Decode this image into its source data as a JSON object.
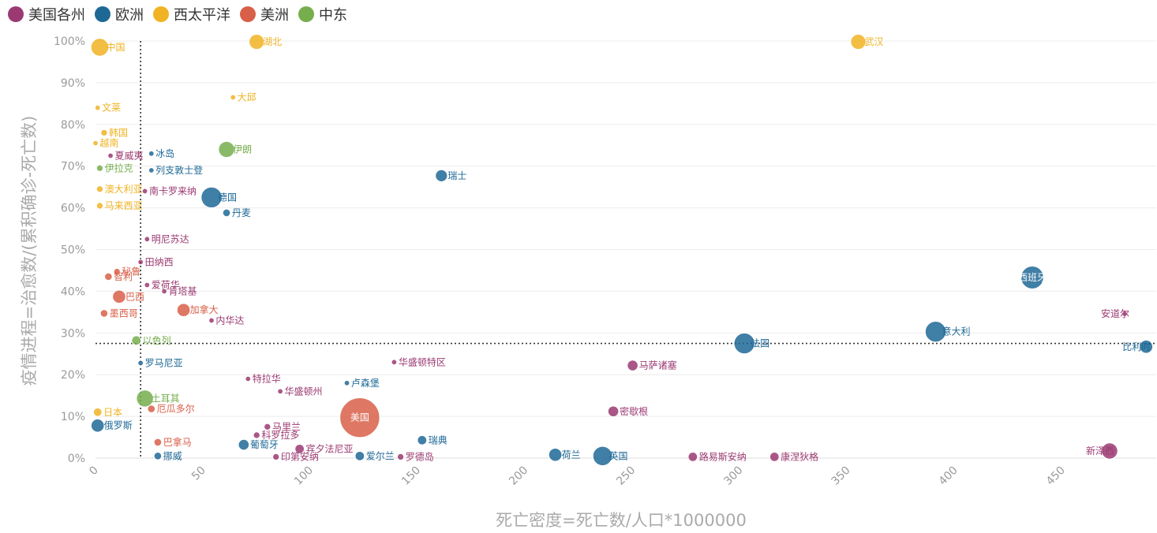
{
  "chart_data": {
    "type": "scatter",
    "xlabel": "死亡密度=死亡数/人口*1000000",
    "ylabel": "疫情进程=治愈数/(累积确诊-死亡数)",
    "xlim": [
      0,
      490
    ],
    "ylim": [
      0,
      1
    ],
    "x_ticks": [
      0,
      50,
      100,
      150,
      200,
      250,
      300,
      350,
      400,
      450
    ],
    "y_ticks": [
      0,
      0.1,
      0.2,
      0.3,
      0.4,
      0.5,
      0.6,
      0.7,
      0.8,
      0.9,
      1.0
    ],
    "y_tick_labels": [
      "0%",
      "10%",
      "20%",
      "30%",
      "40%",
      "50%",
      "60%",
      "70%",
      "80%",
      "90%",
      "100%"
    ],
    "grid": "horizontal",
    "legend_position": "top-left",
    "reference_lines": [
      {
        "axis": "x",
        "value": 21,
        "style": "dotted"
      },
      {
        "axis": "y",
        "value": 0.275,
        "style": "dotted"
      }
    ],
    "colors": {
      "美国各州": "#9b3a72",
      "欧洲": "#1e6896",
      "西太平洋": "#f0b323",
      "美洲": "#d85f48",
      "中东": "#76ae4d"
    },
    "series": [
      {
        "name": "美国各州",
        "points": [
          {
            "label": "夏威夷",
            "x": 7,
            "y": 0.725,
            "size": 1
          },
          {
            "label": "南卡罗来纳",
            "x": 23,
            "y": 0.64,
            "size": 1
          },
          {
            "label": "明尼苏达",
            "x": 24,
            "y": 0.525,
            "size": 1
          },
          {
            "label": "田纳西",
            "x": 21,
            "y": 0.47,
            "size": 1
          },
          {
            "label": "爱荷华",
            "x": 24,
            "y": 0.415,
            "size": 1
          },
          {
            "label": "肯塔基",
            "x": 32,
            "y": 0.4,
            "size": 1
          },
          {
            "label": "内华达",
            "x": 54,
            "y": 0.33,
            "size": 1
          },
          {
            "label": "华盛顿特区",
            "x": 139,
            "y": 0.23,
            "size": 1
          },
          {
            "label": "特拉华",
            "x": 71,
            "y": 0.19,
            "size": 1
          },
          {
            "label": "华盛顿州",
            "x": 86,
            "y": 0.16,
            "size": 1
          },
          {
            "label": "马里兰",
            "x": 80,
            "y": 0.075,
            "size": 1.5
          },
          {
            "label": "科罗拉多",
            "x": 75,
            "y": 0.055,
            "size": 1.5
          },
          {
            "label": "宾夕法尼亚",
            "x": 95,
            "y": 0.022,
            "size": 3
          },
          {
            "label": "印第安纳",
            "x": 84,
            "y": 0.003,
            "size": 1.5
          },
          {
            "label": "罗德岛",
            "x": 142,
            "y": 0.003,
            "size": 1.5
          },
          {
            "label": "马萨诸塞",
            "x": 250,
            "y": 0.222,
            "size": 4
          },
          {
            "label": "密歇根",
            "x": 241,
            "y": 0.112,
            "size": 4
          },
          {
            "label": "路易斯安纳",
            "x": 278,
            "y": 0.003,
            "size": 3
          },
          {
            "label": "康涅狄格",
            "x": 316,
            "y": 0.003,
            "size": 3
          },
          {
            "label": "新泽西",
            "x": 472,
            "y": 0.017,
            "size": 9
          },
          {
            "label": "安道尔",
            "x": 479,
            "y": 0.346,
            "size": 1
          }
        ]
      },
      {
        "name": "欧洲",
        "points": [
          {
            "label": "冰岛",
            "x": 26,
            "y": 0.73,
            "size": 1
          },
          {
            "label": "列支敦士登",
            "x": 26,
            "y": 0.69,
            "size": 1
          },
          {
            "label": "德国",
            "x": 54,
            "y": 0.625,
            "size": 15
          },
          {
            "label": "丹麦",
            "x": 61,
            "y": 0.588,
            "size": 2
          },
          {
            "label": "瑞士",
            "x": 161,
            "y": 0.677,
            "size": 5
          },
          {
            "label": "罗马尼亚",
            "x": 21,
            "y": 0.228,
            "size": 1
          },
          {
            "label": "卢森堡",
            "x": 117,
            "y": 0.18,
            "size": 1
          },
          {
            "label": "俄罗斯",
            "x": 1,
            "y": 0.078,
            "size": 6
          },
          {
            "label": "葡萄牙",
            "x": 69,
            "y": 0.032,
            "size": 4
          },
          {
            "label": "挪威",
            "x": 29,
            "y": 0.005,
            "size": 2
          },
          {
            "label": "爱尔兰",
            "x": 123,
            "y": 0.005,
            "size": 3
          },
          {
            "label": "瑞典",
            "x": 152,
            "y": 0.043,
            "size": 3
          },
          {
            "label": "荷兰",
            "x": 214,
            "y": 0.008,
            "size": 6
          },
          {
            "label": "英国",
            "x": 236,
            "y": 0.005,
            "size": 13
          },
          {
            "label": "法国",
            "x": 302,
            "y": 0.275,
            "size": 15
          },
          {
            "label": "意大利",
            "x": 391,
            "y": 0.303,
            "size": 15
          },
          {
            "label": "西班牙",
            "x": 436,
            "y": 0.433,
            "size": 18
          },
          {
            "label": "比利时",
            "x": 489,
            "y": 0.267,
            "size": 6
          }
        ]
      },
      {
        "name": "西太平洋",
        "points": [
          {
            "label": "中国",
            "x": 2,
            "y": 0.985,
            "size": 11
          },
          {
            "label": "湖北",
            "x": 75,
            "y": 0.998,
            "size": 8
          },
          {
            "label": "武汉",
            "x": 355,
            "y": 0.998,
            "size": 8
          },
          {
            "label": "大邱",
            "x": 64,
            "y": 0.865,
            "size": 1
          },
          {
            "label": "文莱",
            "x": 1,
            "y": 0.84,
            "size": 1
          },
          {
            "label": "韩国",
            "x": 4,
            "y": 0.78,
            "size": 1.5
          },
          {
            "label": "越南",
            "x": 0,
            "y": 0.755,
            "size": 1
          },
          {
            "label": "澳大利亚",
            "x": 2,
            "y": 0.645,
            "size": 1.5
          },
          {
            "label": "马来西亚",
            "x": 2,
            "y": 0.605,
            "size": 1.5
          },
          {
            "label": "日本",
            "x": 1,
            "y": 0.11,
            "size": 2.5
          }
        ]
      },
      {
        "name": "美洲",
        "points": [
          {
            "label": "秘鲁",
            "x": 10,
            "y": 0.447,
            "size": 1.5
          },
          {
            "label": "智利",
            "x": 6,
            "y": 0.435,
            "size": 2
          },
          {
            "label": "巴西",
            "x": 11,
            "y": 0.387,
            "size": 6
          },
          {
            "label": "墨西哥",
            "x": 4,
            "y": 0.347,
            "size": 2
          },
          {
            "label": "加拿大",
            "x": 41,
            "y": 0.355,
            "size": 6
          },
          {
            "label": "厄瓜多尔",
            "x": 26,
            "y": 0.118,
            "size": 2
          },
          {
            "label": "巴拿马",
            "x": 29,
            "y": 0.038,
            "size": 2
          },
          {
            "label": "美国",
            "x": 123,
            "y": 0.097,
            "size": 55
          }
        ]
      },
      {
        "name": "中东",
        "points": [
          {
            "label": "伊拉克",
            "x": 2,
            "y": 0.695,
            "size": 1.5
          },
          {
            "label": "伊朗",
            "x": 61,
            "y": 0.74,
            "size": 9
          },
          {
            "label": "以色列",
            "x": 19,
            "y": 0.282,
            "size": 3
          },
          {
            "label": "土耳其",
            "x": 23,
            "y": 0.143,
            "size": 10
          }
        ]
      }
    ]
  }
}
